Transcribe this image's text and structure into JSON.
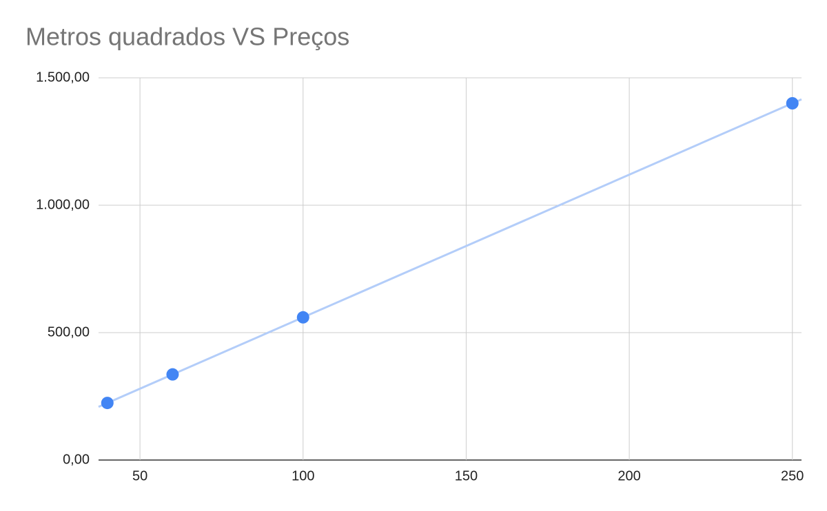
{
  "chart_data": {
    "type": "scatter",
    "title": "Metros quadrados VS Preços",
    "x": [
      40,
      60,
      100,
      250
    ],
    "values": [
      224,
      336,
      560,
      1400
    ],
    "color": "#4285f4",
    "trendline": true,
    "trendline_color": "#b3cdf9",
    "xlim": [
      37.3,
      252.8
    ],
    "xticks": [
      50,
      100,
      150,
      200,
      250
    ],
    "ylim": [
      0,
      1500
    ],
    "yticks": [
      {
        "value": 0,
        "label": "0,00"
      },
      {
        "value": 500,
        "label": "500,00"
      },
      {
        "value": 1000,
        "label": "1.000,00"
      },
      {
        "value": 1500,
        "label": "1.500,00"
      }
    ],
    "grid": true
  }
}
